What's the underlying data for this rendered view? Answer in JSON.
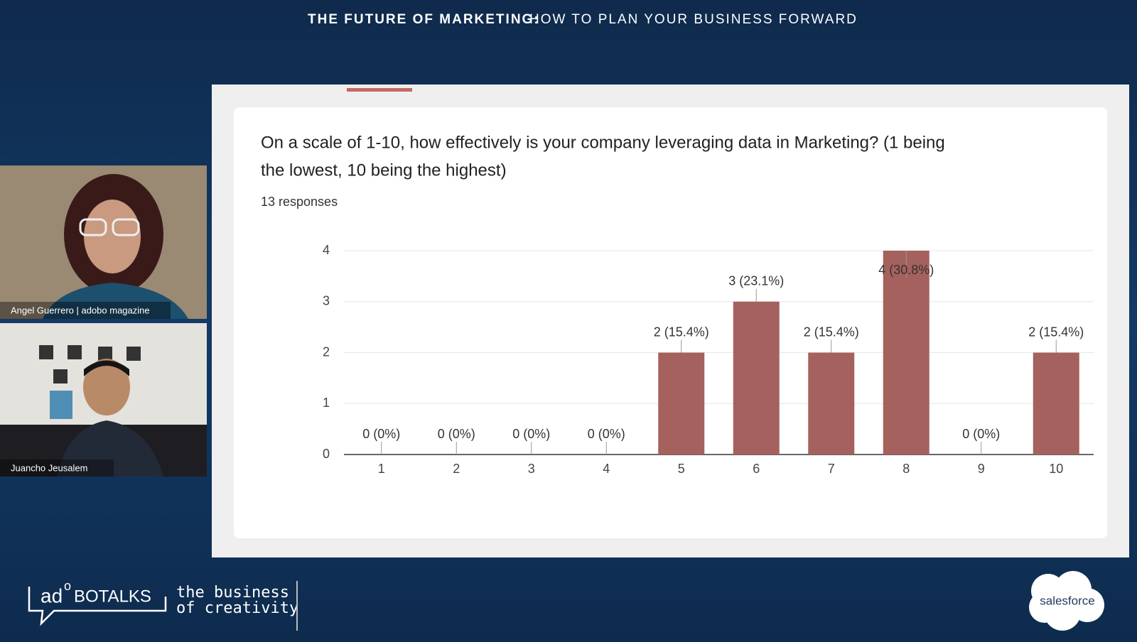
{
  "header": {
    "title_bold": "THE FUTURE OF MARKETING:",
    "title_rest": "HOW TO PLAN YOUR BUSINESS FORWARD"
  },
  "chart_data": {
    "type": "bar",
    "title": [
      "On a scale of 1-10, how effectively is your company leveraging data in Marketing? (1 being",
      "the lowest, 10 being the highest)"
    ],
    "subtitle": "13 responses",
    "categories": [
      "1",
      "2",
      "3",
      "4",
      "5",
      "6",
      "7",
      "8",
      "9",
      "10"
    ],
    "values": [
      0,
      0,
      0,
      0,
      2,
      3,
      2,
      4,
      0,
      2
    ],
    "value_labels": [
      "0 (0%)",
      "0 (0%)",
      "0 (0%)",
      "0 (0%)",
      "2 (15.4%)",
      "3 (23.1%)",
      "2 (15.4%)",
      "4 (30.8%)",
      "0 (0%)",
      "2 (15.4%)"
    ],
    "color": "#a5615d",
    "ylim": [
      0,
      4
    ],
    "yticks": [
      0,
      1,
      2,
      3,
      4
    ],
    "grid": true
  },
  "participants": [
    {
      "name": "Angel Guerrero | adobo magazine"
    },
    {
      "name": "Juancho Jeusalem"
    }
  ],
  "branding": {
    "logo": [
      "ad",
      "o",
      "BOTALKS"
    ],
    "tagline": [
      "the business",
      "of creativity"
    ],
    "sponsor": "salesforce"
  }
}
